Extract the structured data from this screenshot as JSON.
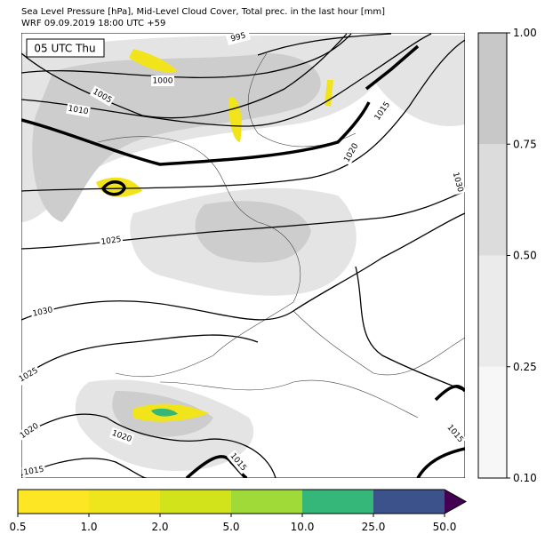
{
  "header": {
    "line1": "Sea Level Pressure [hPa], Mid-Level Cloud Cover, Total prec. in the last hour [mm]",
    "line2": "WRF 09.09.2019 18:00 UTC +59"
  },
  "map": {
    "time_label": "05 UTC Thu",
    "isobar_labels": [
      "995",
      "1000",
      "1005",
      "1010",
      "1015",
      "1020",
      "1025",
      "1030",
      "1030",
      "1025",
      "1020",
      "1020",
      "1015",
      "1015",
      "1015"
    ]
  },
  "cloud_colorbar": {
    "ticks": [
      "0.10",
      "0.25",
      "0.50",
      "0.75",
      "1.00"
    ]
  },
  "precip_colorbar": {
    "ticks": [
      "0.5",
      "1.0",
      "2.0",
      "5.0",
      "10.0",
      "25.0",
      "50.0"
    ]
  }
}
